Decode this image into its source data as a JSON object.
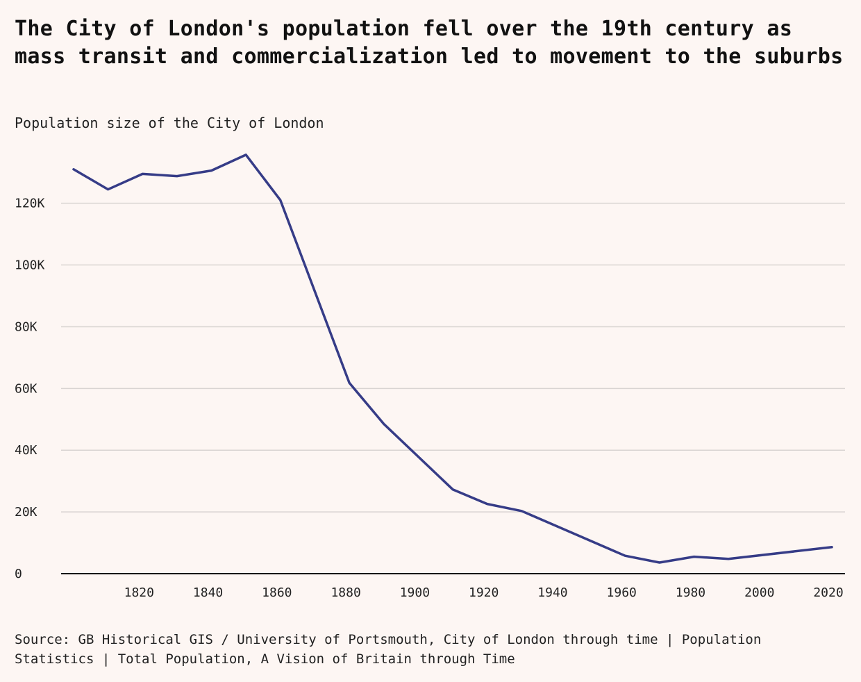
{
  "title": "The City of London's population fell over the 19th century as mass transit and commercialization led to movement to the suburbs",
  "subtitle": "Population size of the City of London",
  "source": "Source: GB Historical GIS / University of Portsmouth, City of London through time | Population Statistics | Total Population, A Vision of Britain through Time",
  "colors": {
    "background": "#fdf6f3",
    "line": "#363c87",
    "gridline": "#d9d4d2",
    "axis": "#111111"
  },
  "chart_data": {
    "type": "line",
    "title": "The City of London's population fell over the 19th century as mass transit and commercialization led to movement to the suburbs",
    "subtitle": "Population size of the City of London",
    "xlabel": "",
    "ylabel": "",
    "xlim": [
      1801,
      2021
    ],
    "ylim": [
      0,
      135000
    ],
    "grid": true,
    "x_ticks": [
      1820,
      1840,
      1860,
      1880,
      1900,
      1920,
      1940,
      1960,
      1980,
      2000,
      2020
    ],
    "x_tick_labels": [
      "1820",
      "1840",
      "1860",
      "1880",
      "1900",
      "1920",
      "1940",
      "1960",
      "1980",
      "2000",
      "2020"
    ],
    "y_ticks": [
      0,
      20000,
      40000,
      60000,
      80000,
      100000,
      120000
    ],
    "y_tick_labels": [
      "0",
      "20K",
      "40K",
      "60K",
      "80K",
      "100K",
      "120K"
    ],
    "series": [
      {
        "name": "Total population",
        "x": [
          1801,
          1811,
          1821,
          1831,
          1841,
          1851,
          1861,
          1881,
          1891,
          1911,
          1921,
          1931,
          1961,
          1971,
          1981,
          1991,
          2021
        ],
        "values": [
          131000,
          124500,
          129500,
          128800,
          130600,
          135700,
          121000,
          61800,
          48500,
          27300,
          22600,
          20300,
          5800,
          3600,
          5500,
          4800,
          8600
        ]
      }
    ]
  }
}
